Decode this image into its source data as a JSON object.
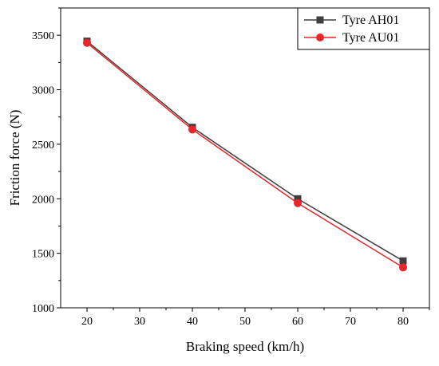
{
  "chart_data": {
    "type": "line",
    "xlabel": "Braking speed (km/h)",
    "ylabel": "Friction force (N)",
    "xlim": [
      15,
      85
    ],
    "ylim": [
      1000,
      3750
    ],
    "xticks": [
      20,
      30,
      40,
      50,
      60,
      70,
      80
    ],
    "yticks": [
      1000,
      1500,
      2000,
      2500,
      3000,
      3500
    ],
    "x": [
      20,
      40,
      60,
      80
    ],
    "grid": false,
    "legend_position": "top-right",
    "series": [
      {
        "name": "Tyre AH01",
        "values": [
          3445,
          2655,
          2000,
          1430
        ],
        "color": "#3f3f3f",
        "marker": "square"
      },
      {
        "name": "Tyre AU01",
        "values": [
          3430,
          2635,
          1960,
          1370
        ],
        "color": "#e8262b",
        "marker": "circle"
      }
    ]
  }
}
